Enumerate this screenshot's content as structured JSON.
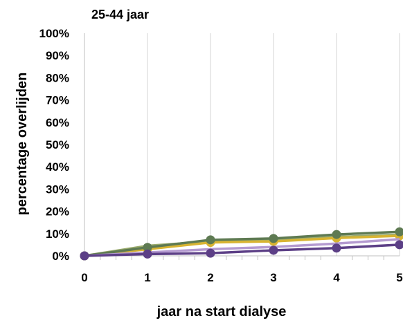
{
  "chart_data": {
    "type": "line",
    "title": "25-44 jaar",
    "xlabel": "jaar na start dialyse",
    "ylabel": "percentage overlijden",
    "x": [
      0,
      1,
      2,
      3,
      4,
      5
    ],
    "ylim": [
      0,
      100
    ],
    "y_tick_labels": [
      "0%",
      "10%",
      "20%",
      "30%",
      "40%",
      "50%",
      "60%",
      "70%",
      "80%",
      "90%",
      "100%"
    ],
    "x_tick_labels": [
      "0",
      "1",
      "2",
      "3",
      "4",
      "5"
    ],
    "grid": "vertical",
    "series": [
      {
        "values": [
          0,
          4.5,
          6.5,
          7.0,
          8.5,
          9.5
        ],
        "color": "#9aab6c",
        "marker": false
      },
      {
        "values": [
          0,
          3.0,
          6.0,
          6.5,
          8.0,
          9.0
        ],
        "color": "#d8b432",
        "marker": true
      },
      {
        "values": [
          0,
          3.8,
          7.2,
          7.8,
          9.6,
          10.8
        ],
        "color": "#5e7a52",
        "marker": true
      },
      {
        "values": [
          0,
          1.5,
          3.0,
          4.0,
          5.5,
          7.5
        ],
        "color": "#b49ad0",
        "marker": false
      },
      {
        "values": [
          0,
          0.8,
          1.2,
          2.5,
          3.5,
          5.0
        ],
        "color": "#5c3f86",
        "marker": true
      }
    ]
  }
}
